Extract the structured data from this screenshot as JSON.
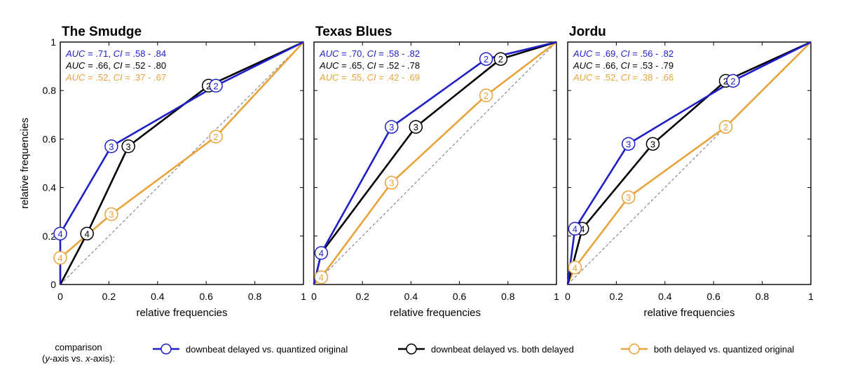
{
  "chart_data": [
    {
      "type": "line",
      "title": "The Smudge",
      "xlabel": "relative frequencies",
      "ylabel": "relative frequencies",
      "xlim": [
        0,
        1
      ],
      "ylim": [
        0,
        1
      ],
      "xticks": [
        "0",
        "0.2",
        "0.4",
        "0.6",
        "0.8",
        "1"
      ],
      "yticks": [
        "0",
        "0.2",
        "0.4",
        "0.6",
        "0.8",
        "1"
      ],
      "auc_lines": [
        {
          "auc": ".71",
          "ci": ".58 - .84",
          "color": "#1f1fc8"
        },
        {
          "auc": ".66",
          "ci": ".52 - .80",
          "color": "#000000"
        },
        {
          "auc": ".52",
          "ci": ".37 - .67",
          "color": "#e8a33a"
        }
      ],
      "series": [
        {
          "color": "#1f1fc8",
          "x": [
            0,
            0,
            0.21,
            0.64,
            1
          ],
          "y": [
            0,
            0.21,
            0.57,
            0.82,
            1
          ],
          "markers": [
            "",
            "4",
            "3",
            "2",
            ""
          ]
        },
        {
          "color": "#000000",
          "x": [
            0,
            0.11,
            0.28,
            0.61,
            1
          ],
          "y": [
            0,
            0.21,
            0.57,
            0.82,
            1
          ],
          "markers": [
            "",
            "4",
            "3",
            "2",
            ""
          ]
        },
        {
          "color": "#e8a33a",
          "x": [
            0,
            0,
            0.21,
            0.64,
            1
          ],
          "y": [
            0,
            0.11,
            0.29,
            0.61,
            1
          ],
          "markers": [
            "",
            "4",
            "3",
            "2",
            ""
          ]
        }
      ]
    },
    {
      "type": "line",
      "title": "Texas Blues",
      "xlabel": "relative frequencies",
      "ylabel": "",
      "xlim": [
        0,
        1
      ],
      "ylim": [
        0,
        1
      ],
      "xticks": [
        "0",
        "0.2",
        "0.4",
        "0.6",
        "0.8",
        "1"
      ],
      "yticks": [],
      "auc_lines": [
        {
          "auc": ".70",
          "ci": ".58 - .82",
          "color": "#1f1fc8"
        },
        {
          "auc": ".65",
          "ci": ".52 - .78",
          "color": "#000000"
        },
        {
          "auc": ".55",
          "ci": ".42 - .69",
          "color": "#e8a33a"
        }
      ],
      "series": [
        {
          "color": "#1f1fc8",
          "x": [
            0,
            0.03,
            0.32,
            0.71,
            1
          ],
          "y": [
            0,
            0.13,
            0.65,
            0.93,
            1
          ],
          "markers": [
            "",
            "4",
            "3",
            "2",
            ""
          ]
        },
        {
          "color": "#000000",
          "x": [
            0,
            0.03,
            0.42,
            0.77,
            1
          ],
          "y": [
            0,
            0.13,
            0.65,
            0.93,
            1
          ],
          "markers": [
            "",
            "",
            "3",
            "2",
            ""
          ]
        },
        {
          "color": "#e8a33a",
          "x": [
            0,
            0.03,
            0.32,
            0.71,
            1
          ],
          "y": [
            0,
            0.03,
            0.42,
            0.78,
            1
          ],
          "markers": [
            "",
            "4",
            "3",
            "2",
            ""
          ]
        }
      ]
    },
    {
      "type": "line",
      "title": "Jordu",
      "xlabel": "relative frequencies",
      "ylabel": "",
      "xlim": [
        0,
        1
      ],
      "ylim": [
        0,
        1
      ],
      "xticks": [
        "0",
        "0.2",
        "0.4",
        "0.6",
        "0.8",
        "1"
      ],
      "yticks": [],
      "auc_lines": [
        {
          "auc": ".69",
          "ci": ".56 - .82",
          "color": "#1f1fc8"
        },
        {
          "auc": ".66",
          "ci": ".53 - .79",
          "color": "#000000"
        },
        {
          "auc": ".52",
          "ci": ".38 - .66",
          "color": "#e8a33a"
        }
      ],
      "series": [
        {
          "color": "#1f1fc8",
          "x": [
            0,
            0.03,
            0.25,
            0.68,
            1
          ],
          "y": [
            0,
            0.23,
            0.58,
            0.84,
            1
          ],
          "markers": [
            "",
            "4",
            "3",
            "2",
            ""
          ]
        },
        {
          "color": "#000000",
          "x": [
            0,
            0.06,
            0.35,
            0.65,
            1
          ],
          "y": [
            0,
            0.23,
            0.58,
            0.84,
            1
          ],
          "markers": [
            "",
            "4",
            "3",
            "2",
            ""
          ]
        },
        {
          "color": "#e8a33a",
          "x": [
            0,
            0.03,
            0.25,
            0.65,
            1
          ],
          "y": [
            0,
            0.07,
            0.36,
            0.65,
            1
          ],
          "markers": [
            "",
            "4",
            "3",
            "2",
            ""
          ]
        }
      ]
    }
  ],
  "legend": {
    "heading_line1": "comparison",
    "heading_line2_italic1": "y",
    "heading_line2_mid": "-axis vs. ",
    "heading_line2_italic2": "x",
    "heading_line2_end": "-axis):",
    "entries": [
      {
        "label": "downbeat delayed vs. quantized original",
        "color": "#1f1fc8"
      },
      {
        "label": "downbeat delayed vs. both delayed",
        "color": "#000000"
      },
      {
        "label": "both delayed vs. quantized original",
        "color": "#e8a33a"
      }
    ]
  }
}
